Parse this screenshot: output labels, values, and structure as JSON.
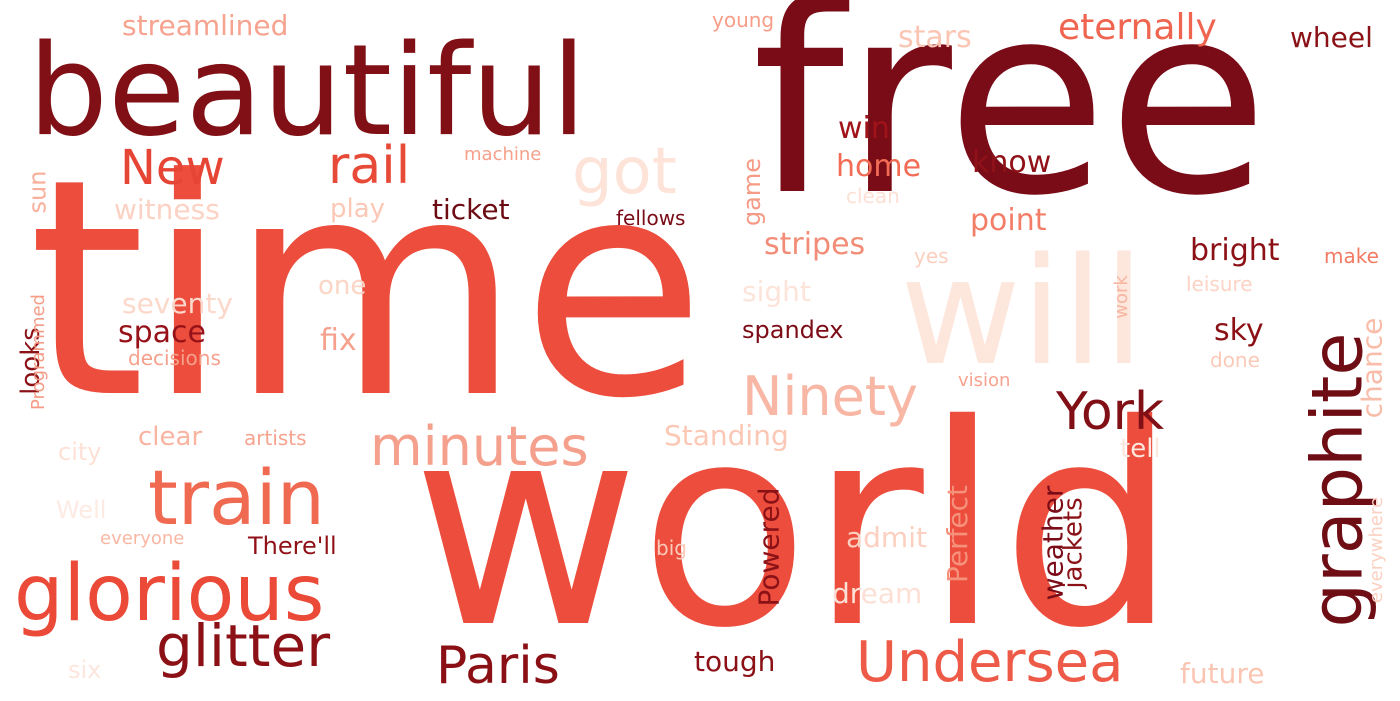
{
  "words": [
    {
      "id": "free",
      "text": "free",
      "color": "#7a0c18"
    },
    {
      "id": "time",
      "text": "time",
      "color": "#ec4d3c"
    },
    {
      "id": "world",
      "text": "world",
      "color": "#ec4d3c"
    },
    {
      "id": "beautiful",
      "text": "beautiful",
      "color": "#801015"
    },
    {
      "id": "will",
      "text": "will",
      "color": "#fde6dc"
    },
    {
      "id": "graphite",
      "text": "graphite",
      "color": "#6e0d14"
    },
    {
      "id": "glorious",
      "text": "glorious",
      "color": "#ea4a37"
    },
    {
      "id": "train",
      "text": "train",
      "color": "#f06a52"
    },
    {
      "id": "undersea",
      "text": "Undersea",
      "color": "#ee5a48"
    },
    {
      "id": "paris",
      "text": "Paris",
      "color": "#8a1016"
    },
    {
      "id": "glitter",
      "text": "glitter",
      "color": "#8c1116"
    },
    {
      "id": "minutes",
      "text": "minutes",
      "color": "#f4a08d"
    },
    {
      "id": "ninety",
      "text": "Ninety",
      "color": "#f8b7a5"
    },
    {
      "id": "york",
      "text": "York",
      "color": "#801015"
    },
    {
      "id": "new",
      "text": "New",
      "color": "#e64434"
    },
    {
      "id": "rail",
      "text": "rail",
      "color": "#e84a38"
    },
    {
      "id": "got",
      "text": "got",
      "color": "#fde3d8"
    },
    {
      "id": "eternally",
      "text": "eternally",
      "color": "#ef6550"
    },
    {
      "id": "stars",
      "text": "stars",
      "color": "#fbc5b4"
    },
    {
      "id": "wheel",
      "text": "wheel",
      "color": "#8a1116"
    },
    {
      "id": "streamlined",
      "text": "streamlined",
      "color": "#f6a390"
    },
    {
      "id": "young",
      "text": "young",
      "color": "#f79d88"
    },
    {
      "id": "win",
      "text": "win",
      "color": "#a01318"
    },
    {
      "id": "home",
      "text": "home",
      "color": "#f16b55"
    },
    {
      "id": "know",
      "text": "know",
      "color": "#901218"
    },
    {
      "id": "point",
      "text": "point",
      "color": "#f37e68"
    },
    {
      "id": "stripes",
      "text": "stripes",
      "color": "#f28c76"
    },
    {
      "id": "bright",
      "text": "bright",
      "color": "#8c1116"
    },
    {
      "id": "make",
      "text": "make",
      "color": "#f07a62"
    },
    {
      "id": "yes",
      "text": "yes",
      "color": "#fbcfbe"
    },
    {
      "id": "clean",
      "text": "clean",
      "color": "#fde0d5"
    },
    {
      "id": "ticket",
      "text": "ticket",
      "color": "#6c0b12"
    },
    {
      "id": "fellows",
      "text": "fellows",
      "color": "#7a0c18"
    },
    {
      "id": "play",
      "text": "play",
      "color": "#fbc8b6"
    },
    {
      "id": "witness",
      "text": "witness",
      "color": "#fbd2c3"
    },
    {
      "id": "machine",
      "text": "machine",
      "color": "#f7a08b"
    },
    {
      "id": "sun",
      "text": "sun",
      "color": "#f8b09c"
    },
    {
      "id": "game",
      "text": "game",
      "color": "#f59a85"
    },
    {
      "id": "seventy",
      "text": "seventy",
      "color": "#fcd8cb"
    },
    {
      "id": "one",
      "text": "one",
      "color": "#fbd5c6"
    },
    {
      "id": "sight",
      "text": "sight",
      "color": "#fde4da"
    },
    {
      "id": "space",
      "text": "space",
      "color": "#961218"
    },
    {
      "id": "fix",
      "text": "fix",
      "color": "#f5a18d"
    },
    {
      "id": "decisions",
      "text": "decisions",
      "color": "#f6a08b"
    },
    {
      "id": "spandex",
      "text": "spandex",
      "color": "#7c0c16"
    },
    {
      "id": "sky",
      "text": "sky",
      "color": "#8c1116"
    },
    {
      "id": "done",
      "text": "done",
      "color": "#fbc9b8"
    },
    {
      "id": "leisure",
      "text": "leisure",
      "color": "#fcd3c4"
    },
    {
      "id": "work",
      "text": "work",
      "color": "#f8b5a2"
    },
    {
      "id": "chance",
      "text": "chance",
      "color": "#f9bca9"
    },
    {
      "id": "looks",
      "text": "looks",
      "color": "#8c1116"
    },
    {
      "id": "programmed",
      "text": "Programmed",
      "color": "#f59c87"
    },
    {
      "id": "vision",
      "text": "vision",
      "color": "#f6a28e"
    },
    {
      "id": "clear",
      "text": "clear",
      "color": "#f8b4a0"
    },
    {
      "id": "artists",
      "text": "artists",
      "color": "#f6a38f"
    },
    {
      "id": "standing",
      "text": "Standing",
      "color": "#fbc8b6"
    },
    {
      "id": "tell",
      "text": "tell",
      "color": "#fde6dd"
    },
    {
      "id": "city",
      "text": "city",
      "color": "#fde1d6"
    },
    {
      "id": "well",
      "text": "Well",
      "color": "#fdeae2"
    },
    {
      "id": "everyone",
      "text": "everyone",
      "color": "#f9b7a3"
    },
    {
      "id": "therell",
      "text": "There'll",
      "color": "#901218"
    },
    {
      "id": "big",
      "text": "big",
      "color": "#fbccbb"
    },
    {
      "id": "admit",
      "text": "admit",
      "color": "#fbd0c0"
    },
    {
      "id": "dream",
      "text": "dream",
      "color": "#fde0d5"
    },
    {
      "id": "powered",
      "text": "Powered",
      "color": "#8a1116"
    },
    {
      "id": "perfect",
      "text": "Perfect",
      "color": "#f6917b"
    },
    {
      "id": "weather",
      "text": "weather",
      "color": "#7a0c18"
    },
    {
      "id": "jackets",
      "text": "jackets",
      "color": "#8a1116"
    },
    {
      "id": "everywhere",
      "text": "everywhere",
      "color": "#fbd1c2"
    },
    {
      "id": "tough",
      "text": "tough",
      "color": "#8c1116"
    },
    {
      "id": "future",
      "text": "future",
      "color": "#fbc5b3"
    },
    {
      "id": "six",
      "text": "six",
      "color": "#fde6dd"
    }
  ]
}
